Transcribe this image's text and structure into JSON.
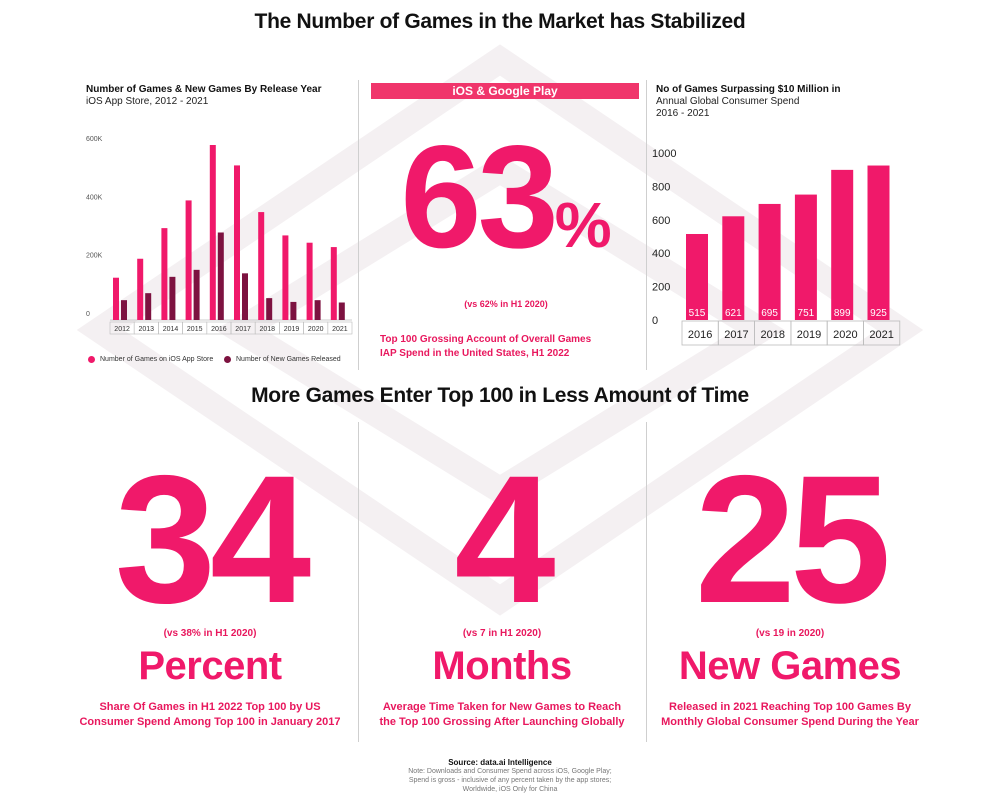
{
  "headings": {
    "top": "The Number of Games in the Market has Stabilized",
    "middle": "More Games Enter Top 100 in Less Amount of Time"
  },
  "left_chart": {
    "title": "Number of Games & New Games By Release Year",
    "subtitle": "iOS App Store, 2012 - 2021",
    "legend": [
      "Number of Games on iOS App Store",
      "Number of New Games Released"
    ]
  },
  "center_stat": {
    "banner": "iOS & Google Play",
    "value": "63",
    "suffix": "%",
    "comparison": "(vs 62% in H1 2020)",
    "description_line1": "Top 100 Grossing Account of Overall Games",
    "description_line2": "IAP Spend in the United States, H1 2022"
  },
  "right_chart": {
    "title": "No of Games Surpassing $10 Million in",
    "subtitle_line1": "Annual Global Consumer Spend",
    "subtitle_line2": "2016 - 2021"
  },
  "stats": [
    {
      "number": "34",
      "comparison": "(vs 38% in H1 2020)",
      "unit": "Percent",
      "desc_line1": "Share Of Games in H1 2022 Top 100 by US",
      "desc_line2": "Consumer Spend Among Top 100 in January 2017"
    },
    {
      "number": "4",
      "comparison": "(vs 7 in H1 2020)",
      "unit": "Months",
      "desc_line1": "Average Time Taken for New Games to Reach",
      "desc_line2": "the Top 100 Grossing After Launching Globally"
    },
    {
      "number": "25",
      "comparison": "(vs 19 in 2020)",
      "unit": "New Games",
      "desc_line1": "Released in 2021 Reaching Top 100 Games By",
      "desc_line2": "Monthly Global Consumer Spend During the Year"
    }
  ],
  "footer": {
    "source": "Source: data.ai Intelligence",
    "note_line1": "Note: Downloads and Consumer Spend across iOS, Google Play;",
    "note_line2": "Spend is gross - inclusive of any percent taken by the app stores;",
    "note_line3": "Worldwide, iOS Only for China"
  },
  "colors": {
    "pink": "#f0196a",
    "dark": "#7d1240",
    "banner": "#f0356b"
  },
  "chart_data": [
    {
      "type": "bar",
      "categories": [
        "2012",
        "2013",
        "2014",
        "2015",
        "2016",
        "2017",
        "2018",
        "2019",
        "2020",
        "2021"
      ],
      "series": [
        {
          "name": "Number of Games on iOS App Store",
          "values": [
            145000,
            210000,
            315000,
            410000,
            600000,
            530000,
            370000,
            290000,
            265000,
            250000
          ]
        },
        {
          "name": "Number of New Games Released",
          "values": [
            68000,
            92000,
            148000,
            172000,
            300000,
            160000,
            75000,
            62000,
            68000,
            60000
          ]
        }
      ],
      "y_ticks": [
        0,
        200000,
        400000,
        600000
      ],
      "y_tick_labels": [
        "0",
        "200K",
        "400K",
        "600K"
      ],
      "ylim": [
        0,
        600000
      ],
      "grid": false,
      "legend": "bottom"
    },
    {
      "type": "bar",
      "categories": [
        "2016",
        "2017",
        "2018",
        "2019",
        "2020",
        "2021"
      ],
      "values": [
        515,
        621,
        695,
        751,
        899,
        925
      ],
      "data_labels": [
        "515",
        "621",
        "695",
        "751",
        "899",
        "925"
      ],
      "y_ticks": [
        0,
        200,
        400,
        600,
        800,
        1000
      ],
      "ylim": [
        0,
        1000
      ],
      "grid": false
    }
  ]
}
